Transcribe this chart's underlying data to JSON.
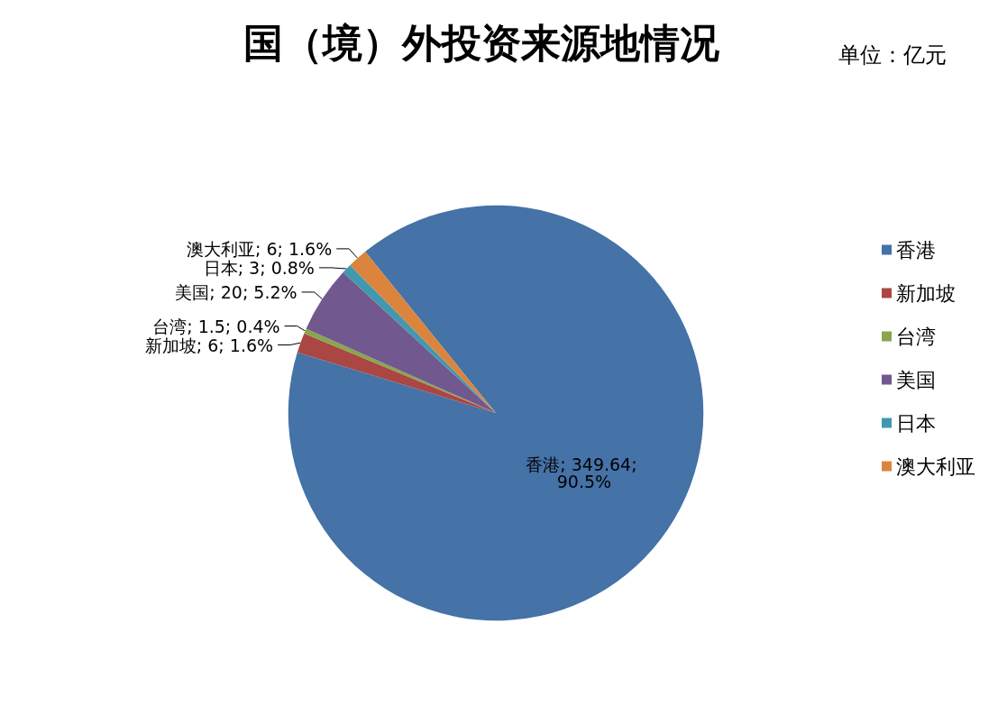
{
  "chart_data": {
    "type": "pie",
    "title": "国（境）外投资来源地情况",
    "subtitle": "单位：亿元",
    "categories": [
      "香港",
      "新加坡",
      "台湾",
      "美国",
      "日本",
      "澳大利亚"
    ],
    "values": [
      349.64,
      6,
      1.5,
      20,
      3,
      6
    ],
    "colors": [
      "#4572a7",
      "#aa4643",
      "#89a54e",
      "#71588f",
      "#4198af",
      "#db843d"
    ],
    "value_labels": [
      "香港; 349.64; 90.5%",
      "新加坡; 6; 1.6%",
      "台湾; 1.5; 0.4%",
      "美国; 20; 5.2%",
      "日本; 3; 0.8%",
      "澳大利亚; 6; 1.6%"
    ],
    "legend": "right"
  }
}
